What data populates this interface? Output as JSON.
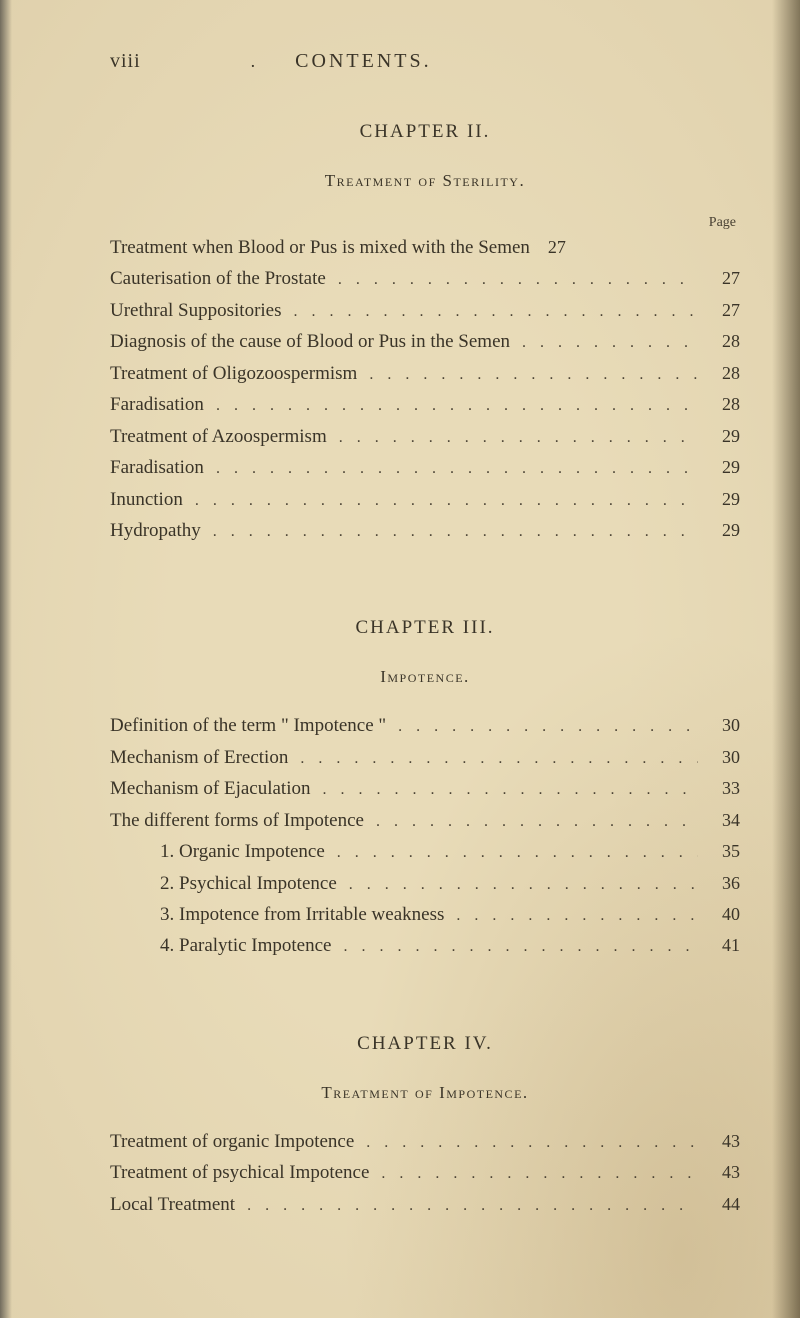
{
  "page": {
    "roman": "viii",
    "heading": "CONTENTS.",
    "background_color": "#e8dbb8",
    "text_color": "#3a3428",
    "page_label": "Page"
  },
  "chapter2": {
    "title": "CHAPTER II.",
    "subtitle": "Treatment of Sterility.",
    "rows": [
      {
        "label": "Treatment when Blood or Pus is mixed with the Semen",
        "page": "27"
      },
      {
        "label": "Cauterisation of the Prostate",
        "page": "27"
      },
      {
        "label": "Urethral Suppositories",
        "page": "27"
      },
      {
        "label": "Diagnosis of the cause of Blood or Pus in the Semen",
        "page": "28"
      },
      {
        "label": "Treatment of Oligozoospermism",
        "page": "28"
      },
      {
        "label": "Faradisation",
        "page": "28"
      },
      {
        "label": "Treatment of Azoospermism",
        "page": "29"
      },
      {
        "label": "Faradisation",
        "page": "29"
      },
      {
        "label": "Inunction",
        "page": "29"
      },
      {
        "label": "Hydropathy",
        "page": "29"
      }
    ]
  },
  "chapter3": {
    "title": "CHAPTER III.",
    "subtitle": "Impotence.",
    "rows": [
      {
        "label": "Definition of the term \" Impotence \"",
        "page": "30",
        "indent": false
      },
      {
        "label": "Mechanism of Erection",
        "page": "30",
        "indent": false
      },
      {
        "label": "Mechanism of Ejaculation",
        "page": "33",
        "indent": false
      },
      {
        "label": "The different forms of Impotence",
        "page": "34",
        "indent": false
      },
      {
        "label": "1. Organic Impotence",
        "page": "35",
        "indent": true
      },
      {
        "label": "2. Psychical Impotence",
        "page": "36",
        "indent": true
      },
      {
        "label": "3. Impotence from Irritable weakness",
        "page": "40",
        "indent": true
      },
      {
        "label": "4. Paralytic Impotence",
        "page": "41",
        "indent": true
      }
    ]
  },
  "chapter4": {
    "title": "CHAPTER IV.",
    "subtitle": "Treatment of Impotence.",
    "rows": [
      {
        "label": "Treatment of organic Impotence",
        "page": "43"
      },
      {
        "label": "Treatment of psychical Impotence",
        "page": "43"
      },
      {
        "label": "Local Treatment",
        "page": "44"
      }
    ]
  }
}
